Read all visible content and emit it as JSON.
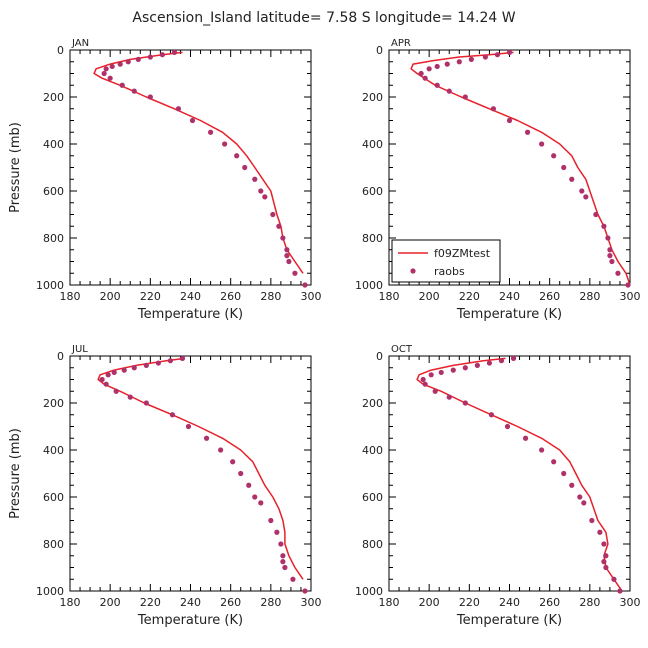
{
  "figure_title": "Ascension_Island  latitude= 7.58 S longitude= 14.24 W",
  "colors": {
    "model": "#e8202a",
    "obs": "#b0306a"
  },
  "legend": {
    "model_label": "f09ZMtest",
    "obs_label": "raobs",
    "panel": "APR"
  },
  "chart_data": [
    {
      "type": "line",
      "title": "JAN",
      "xlabel": "Temperature (K)",
      "ylabel": "Pressure (mb)",
      "xlim": [
        180,
        300
      ],
      "ylim": [
        1000,
        0
      ],
      "xticks": [
        "180",
        "200",
        "220",
        "240",
        "260",
        "280",
        "300"
      ],
      "yticks": [
        "0",
        "200",
        "400",
        "600",
        "800",
        "1000"
      ],
      "series": [
        {
          "name": "f09ZMtest",
          "style": "line",
          "x": [
            236,
            226,
            210,
            200,
            193,
            192,
            196,
            205,
            218,
            232,
            245,
            256,
            263,
            268,
            272,
            276,
            280,
            283,
            285,
            286,
            288,
            292,
            296
          ],
          "y": [
            10,
            20,
            40,
            60,
            80,
            100,
            120,
            150,
            200,
            250,
            300,
            350,
            400,
            450,
            500,
            550,
            600,
            700,
            750,
            800,
            850,
            900,
            950
          ]
        },
        {
          "name": "raobs",
          "style": "points",
          "x": [
            232,
            226,
            220,
            214,
            209,
            205,
            201,
            198,
            197,
            200,
            206,
            212,
            220,
            234,
            241,
            250,
            257,
            263,
            267,
            272,
            275,
            277,
            281,
            284,
            286,
            288,
            288,
            289,
            292,
            297
          ],
          "y": [
            10,
            20,
            30,
            40,
            50,
            60,
            70,
            80,
            100,
            120,
            150,
            175,
            200,
            250,
            300,
            350,
            400,
            450,
            500,
            550,
            600,
            625,
            700,
            750,
            800,
            850,
            875,
            900,
            950,
            1000
          ]
        }
      ]
    },
    {
      "type": "line",
      "title": "APR",
      "xlabel": "Temperature (K)",
      "ylabel": "",
      "xlim": [
        180,
        300
      ],
      "ylim": [
        1000,
        0
      ],
      "xticks": [
        "180",
        "200",
        "220",
        "240",
        "260",
        "280",
        "300"
      ],
      "yticks": [
        "0",
        "200",
        "400",
        "600",
        "800",
        "1000"
      ],
      "series": [
        {
          "name": "f09ZMtest",
          "style": "line",
          "x": [
            242,
            230,
            215,
            202,
            192,
            191,
            194,
            203,
            216,
            230,
            244,
            256,
            265,
            271,
            274,
            278,
            284,
            287,
            289,
            291,
            294,
            298,
            300
          ],
          "y": [
            10,
            20,
            30,
            45,
            60,
            80,
            100,
            150,
            200,
            250,
            300,
            350,
            400,
            450,
            500,
            550,
            700,
            750,
            800,
            850,
            900,
            950,
            1000
          ]
        },
        {
          "name": "raobs",
          "style": "points",
          "x": [
            240,
            234,
            228,
            221,
            215,
            209,
            204,
            200,
            196,
            198,
            204,
            210,
            218,
            232,
            240,
            249,
            256,
            262,
            267,
            271,
            276,
            278,
            283,
            287,
            289,
            290,
            290,
            291,
            294,
            299
          ],
          "y": [
            10,
            20,
            30,
            40,
            50,
            60,
            70,
            80,
            100,
            120,
            150,
            175,
            200,
            250,
            300,
            350,
            400,
            450,
            500,
            550,
            600,
            625,
            700,
            750,
            800,
            850,
            875,
            900,
            950,
            1000
          ]
        }
      ]
    },
    {
      "type": "line",
      "title": "JUL",
      "xlabel": "Temperature (K)",
      "ylabel": "Pressure (mb)",
      "xlim": [
        180,
        300
      ],
      "ylim": [
        1000,
        0
      ],
      "xticks": [
        "180",
        "200",
        "220",
        "240",
        "260",
        "280",
        "300"
      ],
      "yticks": [
        "0",
        "200",
        "400",
        "600",
        "800",
        "1000"
      ],
      "series": [
        {
          "name": "f09ZMtest",
          "style": "line",
          "x": [
            237,
            228,
            213,
            202,
            195,
            194,
            197,
            205,
            217,
            231,
            244,
            256,
            265,
            271,
            274,
            277,
            281,
            284,
            286,
            287,
            287,
            289,
            292,
            296
          ],
          "y": [
            10,
            20,
            40,
            60,
            80,
            100,
            120,
            150,
            200,
            250,
            300,
            350,
            400,
            450,
            500,
            550,
            600,
            650,
            700,
            750,
            800,
            850,
            900,
            950
          ]
        },
        {
          "name": "raobs",
          "style": "points",
          "x": [
            236,
            230,
            224,
            218,
            212,
            207,
            202,
            199,
            196,
            198,
            203,
            210,
            218,
            231,
            239,
            248,
            255,
            261,
            265,
            269,
            272,
            275,
            280,
            283,
            285,
            286,
            286,
            287,
            291,
            297
          ],
          "y": [
            10,
            20,
            30,
            40,
            50,
            60,
            70,
            80,
            100,
            120,
            150,
            175,
            200,
            250,
            300,
            350,
            400,
            450,
            500,
            550,
            600,
            625,
            700,
            750,
            800,
            850,
            875,
            900,
            950,
            1000
          ]
        }
      ]
    },
    {
      "type": "line",
      "title": "OCT",
      "xlabel": "Temperature (K)",
      "ylabel": "",
      "xlim": [
        180,
        300
      ],
      "ylim": [
        1000,
        0
      ],
      "xticks": [
        "180",
        "200",
        "220",
        "240",
        "260",
        "280",
        "300"
      ],
      "yticks": [
        "0",
        "200",
        "400",
        "600",
        "800",
        "1000"
      ],
      "series": [
        {
          "name": "f09ZMtest",
          "style": "line",
          "x": [
            238,
            227,
            212,
            201,
            195,
            194,
            197,
            206,
            218,
            231,
            244,
            256,
            265,
            270,
            273,
            276,
            280,
            284,
            288,
            289,
            287,
            288,
            292,
            296
          ],
          "y": [
            10,
            20,
            40,
            60,
            80,
            100,
            120,
            150,
            200,
            250,
            300,
            350,
            400,
            450,
            500,
            550,
            600,
            700,
            750,
            800,
            850,
            900,
            950,
            1000
          ]
        },
        {
          "name": "raobs",
          "style": "points",
          "x": [
            242,
            236,
            230,
            224,
            218,
            212,
            206,
            201,
            197,
            198,
            203,
            210,
            218,
            231,
            239,
            248,
            256,
            262,
            267,
            271,
            275,
            277,
            281,
            285,
            287,
            288,
            287,
            288,
            292,
            295
          ],
          "y": [
            10,
            20,
            30,
            40,
            50,
            60,
            70,
            80,
            100,
            120,
            150,
            175,
            200,
            250,
            300,
            350,
            400,
            450,
            500,
            550,
            600,
            625,
            700,
            750,
            800,
            850,
            875,
            900,
            950,
            1000
          ]
        }
      ]
    }
  ]
}
